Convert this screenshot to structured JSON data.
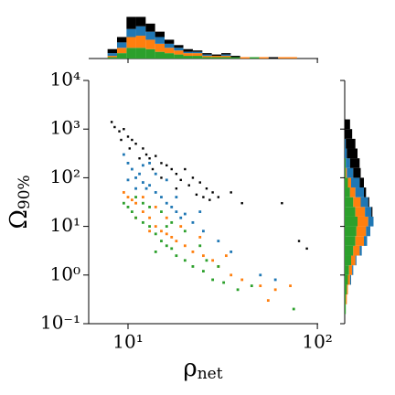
{
  "chart_data": [
    {
      "type": "scatter",
      "xlabel": "ρ",
      "xlabel_sub": "net",
      "ylabel": "Ω",
      "ylabel_sub": "90%",
      "log_x": true,
      "log_y": true,
      "xlim": [
        6.2,
        101
      ],
      "ylim": [
        0.1,
        10000
      ],
      "xticks": [
        {
          "value": 10,
          "label": "10¹"
        },
        {
          "value": 100,
          "label": "10²"
        }
      ],
      "yticks": [
        {
          "value": 0.1,
          "label": "10⁻¹"
        },
        {
          "value": 1,
          "label": "10⁰"
        },
        {
          "value": 10,
          "label": "10¹"
        },
        {
          "value": 100,
          "label": "10²"
        },
        {
          "value": 1000,
          "label": "10³"
        },
        {
          "value": 10000,
          "label": "10⁴"
        }
      ],
      "series": [
        {
          "color": "#000000",
          "x": [
            8.2,
            8.5,
            9,
            9.5,
            10,
            10.5,
            11,
            12,
            12.5,
            13,
            14,
            15,
            16,
            17,
            18,
            20,
            22,
            24,
            26,
            28,
            30,
            35,
            40,
            18,
            21,
            25,
            11.5,
            13.5,
            9.2,
            10.2,
            15,
            19,
            27,
            65,
            80,
            88,
            23
          ],
          "values": [
            1400,
            1100,
            900,
            1000,
            700,
            600,
            500,
            400,
            300,
            250,
            280,
            200,
            180,
            150,
            120,
            150,
            100,
            80,
            60,
            50,
            40,
            50,
            30,
            60,
            70,
            40,
            250,
            150,
            600,
            400,
            100,
            90,
            35,
            30,
            5,
            3.5,
            45
          ]
        },
        {
          "color": "#1f77b4",
          "x": [
            9.5,
            10,
            10.5,
            11,
            11.5,
            12,
            12.5,
            13,
            14,
            15,
            16,
            17,
            18,
            19,
            20,
            13,
            12,
            14,
            16,
            22,
            25,
            30,
            35,
            50,
            60,
            11,
            10,
            18,
            24
          ],
          "values": [
            300,
            200,
            150,
            100,
            120,
            80,
            60,
            70,
            50,
            40,
            30,
            25,
            20,
            15,
            18,
            200,
            180,
            120,
            90,
            12,
            8,
            5,
            3,
            1,
            0.8,
            60,
            90,
            40,
            20
          ]
        },
        {
          "color": "#ff7f0e",
          "x": [
            9.5,
            10,
            10.5,
            11,
            12,
            13,
            14,
            15,
            16,
            17,
            18,
            20,
            22,
            25,
            28,
            30,
            35,
            40,
            50,
            60,
            72,
            55,
            12,
            14,
            16,
            19,
            24,
            13,
            11,
            33
          ],
          "values": [
            50,
            40,
            35,
            30,
            20,
            15,
            10,
            8,
            7,
            6,
            5,
            4,
            3,
            2.5,
            2,
            1.5,
            1,
            0.8,
            0.6,
            0.5,
            0.6,
            0.3,
            40,
            25,
            15,
            10,
            6,
            8,
            15,
            2.5
          ]
        },
        {
          "color": "#2ca02c",
          "x": [
            9.5,
            10,
            10.5,
            11,
            12,
            13,
            14,
            15,
            16,
            17,
            18,
            20,
            22,
            25,
            28,
            32,
            38,
            45,
            75,
            11,
            12,
            13,
            15,
            17,
            20,
            24,
            26,
            14,
            30,
            16
          ],
          "values": [
            30,
            25,
            20,
            15,
            12,
            10,
            7,
            5,
            4,
            3.5,
            2.5,
            2,
            1.5,
            1.2,
            0.8,
            0.7,
            0.5,
            0.6,
            0.2,
            40,
            30,
            25,
            20,
            12,
            8,
            4,
            2,
            3,
            1.5,
            10
          ]
        }
      ]
    },
    {
      "type": "histogram",
      "orientation": "vertical",
      "countlim": [
        0,
        32
      ],
      "bins": [
        7.8,
        8.75,
        9.82,
        11.0,
        12.4,
        13.9,
        15.6,
        17.5,
        19.6,
        22.0,
        24.7,
        27.7,
        31.1,
        34.9,
        39.1,
        43.9,
        49.3,
        55.3,
        62.0,
        69.6,
        78.1
      ],
      "series": [
        {
          "color": "#2ca02c",
          "values": [
            1,
            4,
            8,
            8,
            7,
            5,
            4,
            3,
            2,
            2,
            1,
            1,
            1,
            1,
            0,
            1,
            0,
            0,
            0,
            0
          ]
        },
        {
          "color": "#ff7f0e",
          "values": [
            1,
            4,
            8,
            9,
            7,
            6,
            4,
            3,
            2,
            2,
            1,
            1,
            1,
            0,
            1,
            0,
            1,
            0,
            1,
            1
          ]
        },
        {
          "color": "#1f77b4",
          "values": [
            2,
            4,
            6,
            7,
            6,
            5,
            3,
            2,
            1,
            1,
            1,
            0,
            1,
            0,
            0,
            0,
            0,
            0,
            0,
            0
          ]
        },
        {
          "color": "#000000",
          "values": [
            3,
            4,
            9,
            7,
            6,
            4,
            3,
            2,
            2,
            1,
            1,
            1,
            1,
            1,
            0,
            0,
            0,
            1,
            0,
            0
          ]
        }
      ]
    },
    {
      "type": "histogram",
      "orientation": "horizontal",
      "countlim": [
        0,
        30
      ],
      "bins": [
        0.158,
        0.251,
        0.398,
        0.631,
        1,
        1.585,
        2.512,
        3.981,
        6.31,
        10,
        15.85,
        25.12,
        39.81,
        63.1,
        100,
        158.5,
        251.2,
        398.1,
        631,
        1000,
        1585
      ],
      "series": [
        {
          "color": "#2ca02c",
          "values": [
            1,
            1,
            2,
            3,
            4,
            6,
            8,
            10,
            11,
            12,
            10,
            8,
            5,
            3,
            1,
            1,
            0,
            0,
            0,
            0
          ]
        },
        {
          "color": "#ff7f0e",
          "values": [
            0,
            1,
            1,
            2,
            3,
            4,
            6,
            8,
            9,
            10,
            9,
            7,
            5,
            3,
            1,
            0,
            0,
            0,
            0,
            0
          ]
        },
        {
          "color": "#1f77b4",
          "values": [
            0,
            0,
            0,
            1,
            1,
            1,
            2,
            3,
            4,
            5,
            6,
            7,
            8,
            8,
            6,
            4,
            2,
            1,
            0,
            0
          ]
        },
        {
          "color": "#000000",
          "values": [
            0,
            0,
            0,
            0,
            0,
            0,
            0,
            0,
            0,
            0,
            1,
            1,
            2,
            4,
            7,
            9,
            10,
            9,
            7,
            5
          ]
        }
      ]
    }
  ]
}
